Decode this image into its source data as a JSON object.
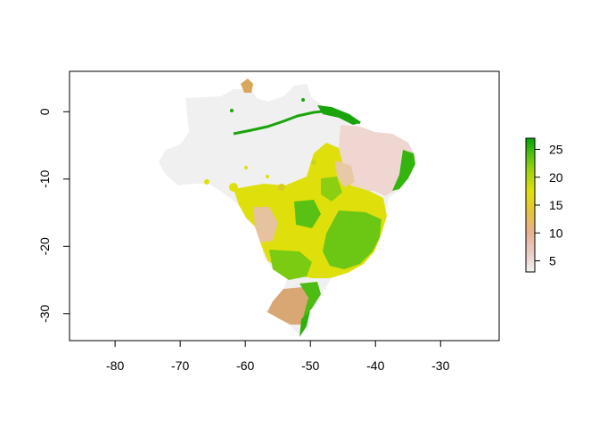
{
  "chart_data": {
    "type": "heatmap",
    "title": "",
    "xlabel": "",
    "ylabel": "",
    "xlim": [
      -87,
      -21
    ],
    "ylim": [
      -34,
      6
    ],
    "x_ticks": [
      "-80",
      "-70",
      "-60",
      "-50",
      "-40",
      "-30"
    ],
    "y_ticks": [
      "0",
      "-10",
      "-20",
      "-30"
    ],
    "legend": {
      "position": "right",
      "min": 3,
      "max": 27,
      "ticks": [
        "5",
        "10",
        "15",
        "20",
        "25"
      ],
      "colors": [
        "#f2f2f2",
        "#eacbc5",
        "#e8b18f",
        "#e8c23d",
        "#dfe00b",
        "#a2d40e",
        "#4fbf11",
        "#00a600"
      ]
    },
    "regions": [
      {
        "name": "Amazon (no data)",
        "value_class": "na",
        "color": "#f0f0f0"
      },
      {
        "name": "Northeast",
        "value_class": "low",
        "color": "#efd6d0"
      },
      {
        "name": "Central plateau",
        "value_class": "mid-high",
        "color": "#dfe00b"
      },
      {
        "name": "Southeast",
        "value_class": "high",
        "color": "#58c114"
      },
      {
        "name": "Rio Grande do Sul",
        "value_class": "low-mid",
        "color": "#d9a774"
      },
      {
        "name": "Amazon river corridor",
        "value_class": "max",
        "color": "#1aa40a"
      }
    ]
  }
}
